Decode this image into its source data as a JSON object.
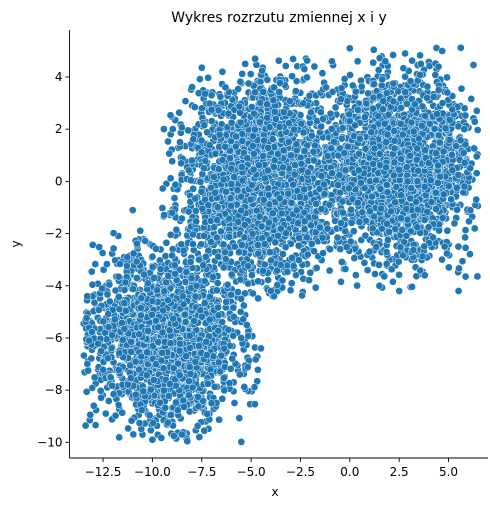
{
  "chart_data": {
    "type": "scatter",
    "title": "Wykres rozrzutu zmiennej x i y",
    "xlabel": "x",
    "ylabel": "y",
    "xlim": [
      -14.2,
      7.0
    ],
    "ylim": [
      -10.6,
      5.8
    ],
    "x_ticks": [
      -12.5,
      -10.0,
      -7.5,
      -5.0,
      -2.5,
      0.0,
      2.5,
      5.0
    ],
    "x_tick_labels": [
      "−12.5",
      "−10.0",
      "−7.5",
      "−5.0",
      "−2.5",
      "0.0",
      "2.5",
      "5.0"
    ],
    "y_ticks": [
      -10,
      -8,
      -6,
      -4,
      -2,
      0,
      2,
      4
    ],
    "y_tick_labels": [
      "−10",
      "−8",
      "−6",
      "−4",
      "−2",
      "0",
      "2",
      "4"
    ],
    "grid": false,
    "legend": null,
    "marker_color": "#1f77b4",
    "marker_edge_color": "#ffffff",
    "clusters": [
      {
        "center": [
          -9.5,
          -6.0
        ],
        "spread": [
          2.0,
          1.6
        ],
        "n": 2000,
        "bounds": {
          "x": [
            -13.5,
            -4.5
          ],
          "y": [
            -10.0,
            -1.0
          ]
        }
      },
      {
        "center": [
          -4.5,
          0.0
        ],
        "spread": [
          2.0,
          1.9
        ],
        "n": 2400,
        "bounds": {
          "x": [
            -9.5,
            0.5
          ],
          "y": [
            -4.5,
            4.8
          ]
        }
      },
      {
        "center": [
          2.5,
          0.5
        ],
        "spread": [
          1.8,
          1.7
        ],
        "n": 2200,
        "bounds": {
          "x": [
            -2.5,
            6.5
          ],
          "y": [
            -4.3,
            5.2
          ]
        }
      }
    ],
    "outliers": [
      [
        -4.8,
        4.7
      ],
      [
        -5.3,
        4.5
      ],
      [
        0.0,
        5.1
      ],
      [
        2.8,
        4.9
      ],
      [
        3.6,
        4.5
      ],
      [
        4.5,
        3.5
      ],
      [
        4.7,
        3.0
      ],
      [
        5.8,
        2.0
      ],
      [
        6.1,
        0.5
      ],
      [
        6.4,
        -0.7
      ],
      [
        5.5,
        -2.5
      ],
      [
        4.8,
        -2.5
      ],
      [
        2.5,
        -4.2
      ],
      [
        1.5,
        -4.0
      ],
      [
        -2.0,
        -3.5
      ],
      [
        -4.0,
        -4.2
      ],
      [
        -5.5,
        -4.5
      ],
      [
        -5.5,
        -6.0
      ],
      [
        -4.5,
        -6.4
      ],
      [
        -7.0,
        -8.5
      ],
      [
        -8.5,
        -9.7
      ],
      [
        -10.0,
        -9.9
      ],
      [
        -13.3,
        -4.4
      ],
      [
        -13.2,
        -6.1
      ],
      [
        -12.6,
        -6.5
      ],
      [
        -11.0,
        -1.1
      ],
      [
        -9.0,
        -1.2
      ],
      [
        -8.0,
        0.8
      ],
      [
        -8.6,
        1.5
      ],
      [
        -7.5,
        2.8
      ],
      [
        -7.0,
        3.3
      ],
      [
        -6.3,
        3.6
      ],
      [
        -3.5,
        -3.2
      ],
      [
        0.9,
        -3.4
      ],
      [
        -1.0,
        -2.6
      ],
      [
        3.8,
        -3.6
      ],
      [
        -2.3,
        4.3
      ],
      [
        -1.2,
        3.6
      ],
      [
        0.4,
        4.6
      ],
      [
        1.8,
        4.6
      ]
    ]
  }
}
